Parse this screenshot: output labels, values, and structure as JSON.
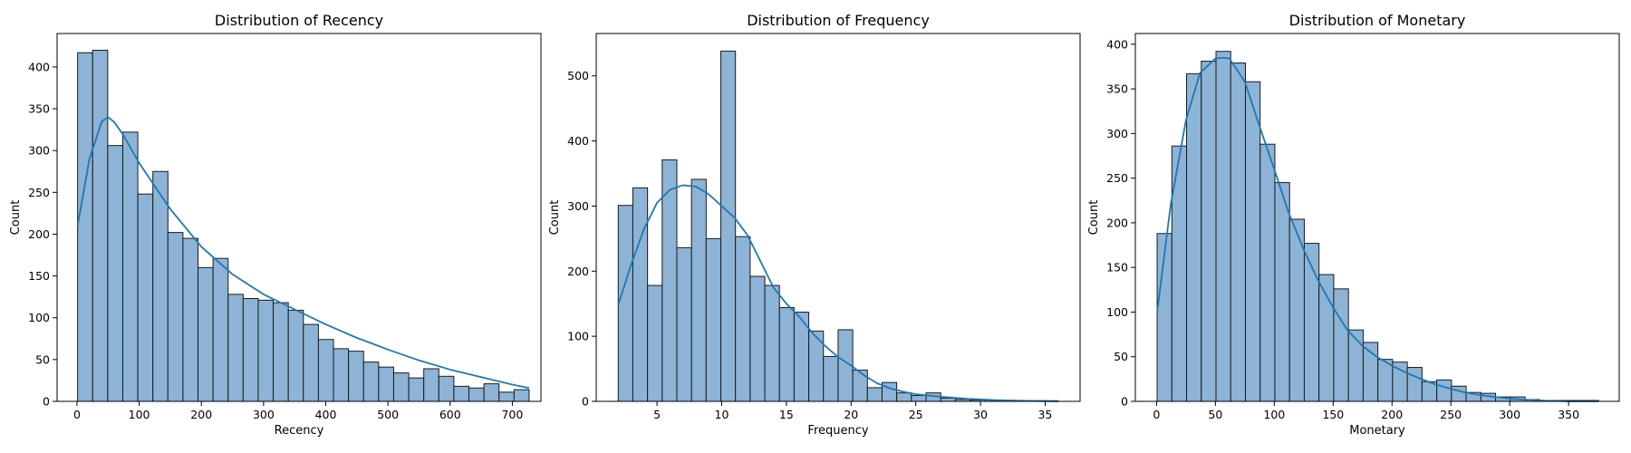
{
  "chart_data": [
    {
      "type": "bar",
      "title": "Distribution of Recency",
      "xlabel": "Recency",
      "ylabel": "Count",
      "xlim": [
        -32,
        746
      ],
      "ylim": [
        0,
        440
      ],
      "xticks": [
        0,
        100,
        200,
        300,
        400,
        500,
        600,
        700
      ],
      "yticks": [
        0,
        50,
        100,
        150,
        200,
        250,
        300,
        350,
        400
      ],
      "bin_start": 1,
      "bin_width": 24.2,
      "counts": [
        417,
        420,
        306,
        322,
        248,
        275,
        202,
        195,
        160,
        171,
        128,
        123,
        121,
        118,
        109,
        92,
        74,
        63,
        60,
        47,
        41,
        34,
        28,
        39,
        30,
        18,
        16,
        21,
        11,
        14
      ],
      "kde_x": [
        1,
        20,
        40,
        50,
        60,
        75,
        100,
        150,
        200,
        250,
        300,
        350,
        400,
        450,
        500,
        550,
        600,
        650,
        700,
        727
      ],
      "kde_y": [
        210,
        290,
        335,
        340,
        334,
        318,
        285,
        230,
        185,
        152,
        128,
        110,
        92,
        76,
        62,
        49,
        38,
        29,
        20,
        16
      ]
    },
    {
      "type": "bar",
      "title": "Distribution of Frequency",
      "xlabel": "Frequency",
      "ylabel": "Count",
      "xlim": [
        0.3,
        37.7
      ],
      "ylim": [
        0,
        565
      ],
      "xticks": [
        5,
        10,
        15,
        20,
        25,
        30,
        35
      ],
      "yticks": [
        0,
        100,
        200,
        300,
        400,
        500
      ],
      "bin_start": 2,
      "bin_width": 1.133,
      "counts": [
        301,
        328,
        178,
        371,
        236,
        341,
        250,
        538,
        253,
        192,
        178,
        144,
        137,
        108,
        69,
        110,
        48,
        21,
        29,
        13,
        9,
        13,
        5,
        3,
        2,
        2,
        1,
        1,
        1,
        1
      ],
      "kde_x": [
        2,
        3,
        4,
        5,
        6,
        7,
        8,
        9,
        10,
        11,
        12,
        13,
        14,
        15,
        16,
        17,
        18,
        19,
        20,
        21,
        22,
        23,
        24,
        25,
        27,
        29,
        31,
        33,
        36
      ],
      "kde_y": [
        148,
        210,
        265,
        305,
        325,
        332,
        330,
        318,
        300,
        282,
        255,
        215,
        175,
        150,
        130,
        105,
        85,
        68,
        55,
        40,
        28,
        20,
        15,
        11,
        7,
        4,
        2,
        1,
        0
      ]
    },
    {
      "type": "bar",
      "title": "Distribution of Monetary",
      "xlabel": "Monetary",
      "ylabel": "Count",
      "xlim": [
        -18,
        393
      ],
      "ylim": [
        0,
        412
      ],
      "xticks": [
        0,
        50,
        100,
        150,
        200,
        250,
        300,
        350
      ],
      "yticks": [
        0,
        50,
        100,
        150,
        200,
        250,
        300,
        350,
        400
      ],
      "bin_start": 0.5,
      "bin_width": 12.5,
      "counts": [
        188,
        286,
        367,
        381,
        392,
        379,
        358,
        288,
        245,
        204,
        177,
        142,
        126,
        80,
        66,
        47,
        44,
        38,
        22,
        24,
        17,
        10,
        9,
        5,
        5,
        2,
        1,
        1,
        1,
        1
      ],
      "kde_x": [
        0.5,
        12,
        25,
        37,
        50,
        57,
        62,
        75,
        87,
        100,
        112,
        125,
        137,
        150,
        162,
        175,
        187,
        200,
        212,
        225,
        237,
        250,
        262,
        275,
        287,
        300,
        312,
        325,
        350,
        375
      ],
      "kde_y": [
        100,
        220,
        315,
        368,
        384,
        385,
        384,
        358,
        310,
        260,
        212,
        170,
        136,
        105,
        80,
        62,
        50,
        40,
        32,
        25,
        19,
        14,
        10,
        7,
        5,
        3,
        2,
        1,
        0,
        0
      ]
    }
  ]
}
